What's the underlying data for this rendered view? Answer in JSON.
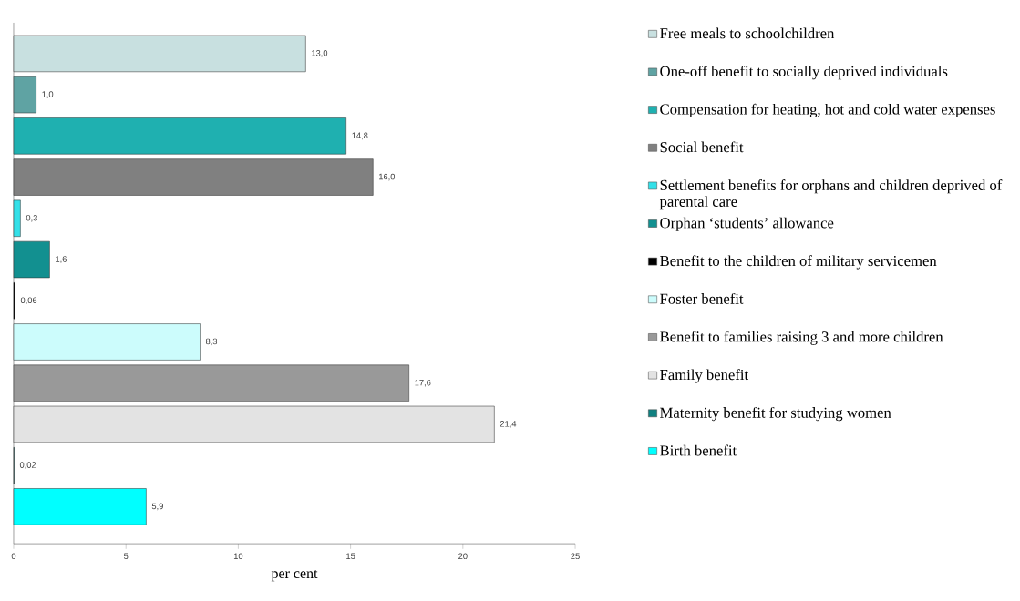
{
  "chart_data": {
    "type": "bar",
    "orientation": "horizontal",
    "xlabel": "per cent",
    "categories": [
      null,
      null,
      null,
      null,
      null,
      null,
      null,
      null,
      null,
      null,
      null,
      null
    ],
    "series": [
      {
        "name": "Free meals to schoolchildren",
        "color": "#c8e0e0",
        "values": [
          13.0,
          null,
          null,
          null,
          null,
          null,
          null,
          null,
          null,
          null,
          null,
          null
        ],
        "value_labels": [
          "13,0",
          null,
          null,
          null,
          null,
          null,
          null,
          null,
          null,
          null,
          null,
          null
        ]
      },
      {
        "name": "One-off benefit to socially deprived individuals",
        "color": "#5fa3a3",
        "values": [
          null,
          1.0,
          null,
          null,
          null,
          null,
          null,
          null,
          null,
          null,
          null,
          null
        ],
        "value_labels": [
          null,
          "1,0",
          null,
          null,
          null,
          null,
          null,
          null,
          null,
          null,
          null,
          null
        ]
      },
      {
        "name": "Compensation for heating, hot and cold water expenses",
        "color": "#1fb0b0",
        "values": [
          null,
          null,
          14.8,
          null,
          null,
          null,
          null,
          null,
          null,
          null,
          null,
          null
        ],
        "value_labels": [
          null,
          null,
          "14,8",
          null,
          null,
          null,
          null,
          null,
          null,
          null,
          null,
          null
        ]
      },
      {
        "name": "Social benefit",
        "color": "#808080",
        "values": [
          null,
          null,
          null,
          16.0,
          null,
          null,
          null,
          null,
          null,
          null,
          null,
          null
        ],
        "value_labels": [
          null,
          null,
          null,
          "16,0",
          null,
          null,
          null,
          null,
          null,
          null,
          null,
          null
        ]
      },
      {
        "name": "Settlement benefits for orphans and children deprived of parental care",
        "color": "#33e0e8",
        "values": [
          null,
          null,
          null,
          null,
          0.3,
          null,
          null,
          null,
          null,
          null,
          null,
          null
        ],
        "value_labels": [
          null,
          null,
          null,
          null,
          "0,3",
          null,
          null,
          null,
          null,
          null,
          null,
          null
        ]
      },
      {
        "name": "Orphan ‘students’ allowance",
        "color": "#129090",
        "values": [
          null,
          null,
          null,
          null,
          null,
          1.6,
          null,
          null,
          null,
          null,
          null,
          null
        ],
        "value_labels": [
          null,
          null,
          null,
          null,
          null,
          "1,6",
          null,
          null,
          null,
          null,
          null,
          null
        ]
      },
      {
        "name": "Benefit to the children of military servicemen",
        "color": "#000000",
        "values": [
          null,
          null,
          null,
          null,
          null,
          null,
          0.06,
          null,
          null,
          null,
          null,
          null
        ],
        "value_labels": [
          null,
          null,
          null,
          null,
          null,
          null,
          "0,06",
          null,
          null,
          null,
          null,
          null
        ]
      },
      {
        "name": "Foster benefit",
        "color": "#ccfcfc",
        "values": [
          null,
          null,
          null,
          null,
          null,
          null,
          null,
          8.3,
          null,
          null,
          null,
          null
        ],
        "value_labels": [
          null,
          null,
          null,
          null,
          null,
          null,
          null,
          "8,3",
          null,
          null,
          null,
          null
        ]
      },
      {
        "name": "Benefit to families raising 3 and more children",
        "color": "#999999",
        "values": [
          null,
          null,
          null,
          null,
          null,
          null,
          null,
          null,
          17.6,
          null,
          null,
          null
        ],
        "value_labels": [
          null,
          null,
          null,
          null,
          null,
          null,
          null,
          null,
          "17,6",
          null,
          null,
          null
        ]
      },
      {
        "name": "Family benefit",
        "color": "#e3e3e3",
        "values": [
          null,
          null,
          null,
          null,
          null,
          null,
          null,
          null,
          null,
          21.4,
          null,
          null
        ],
        "value_labels": [
          null,
          null,
          null,
          null,
          null,
          null,
          null,
          null,
          null,
          "21,4",
          null,
          null
        ]
      },
      {
        "name": "Maternity benefit for studying women",
        "color": "#108080",
        "values": [
          null,
          null,
          null,
          null,
          null,
          null,
          null,
          null,
          null,
          null,
          0.02,
          null
        ],
        "value_labels": [
          null,
          null,
          null,
          null,
          null,
          null,
          null,
          null,
          null,
          null,
          "0,02",
          null
        ]
      },
      {
        "name": "Birth benefit",
        "color": "#00ffff",
        "values": [
          null,
          null,
          null,
          null,
          null,
          null,
          null,
          null,
          null,
          null,
          null,
          5.9
        ],
        "value_labels": [
          null,
          null,
          null,
          null,
          null,
          null,
          null,
          null,
          null,
          null,
          null,
          "5,9"
        ]
      }
    ],
    "xlim": [
      0,
      25
    ],
    "xticks": [
      0,
      5,
      10,
      15,
      20,
      25
    ],
    "legend": "right"
  }
}
